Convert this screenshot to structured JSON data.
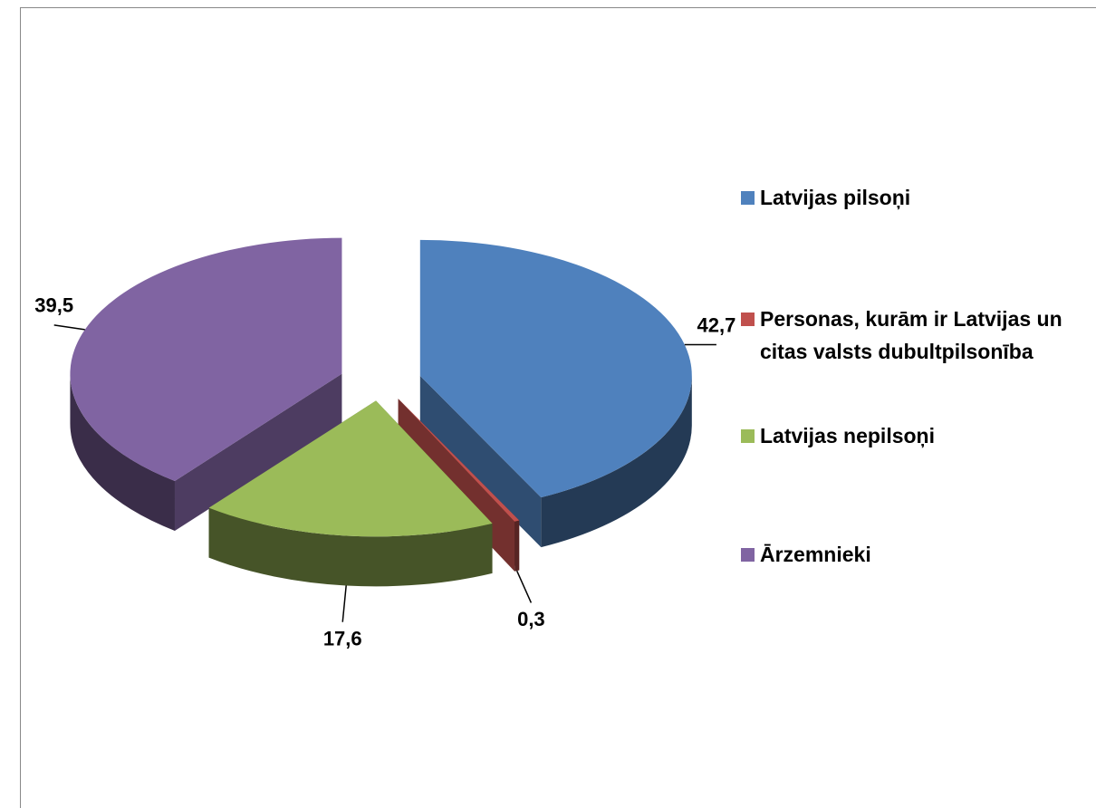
{
  "chart_data": {
    "type": "pie",
    "categories": [
      "Latvijas pilsoņi",
      "Personas, kurām ir Latvijas un citas valsts dubultpilsonība",
      "Latvijas nepilsoņi",
      "Ārzemnieki"
    ],
    "values": [
      42.7,
      0.3,
      17.6,
      39.5
    ],
    "value_labels": [
      "42,7",
      "0,3",
      "17,6",
      "39,5"
    ],
    "colors": [
      "#4f81bd",
      "#c0504d",
      "#9bbb59",
      "#8064a2"
    ],
    "legend": "right"
  }
}
